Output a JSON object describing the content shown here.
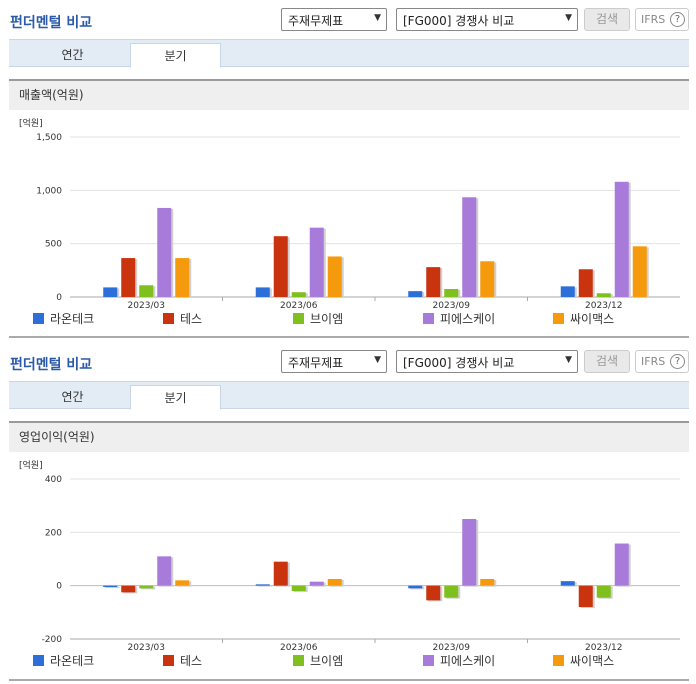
{
  "panels": [
    {
      "title": "펀더멘털 비교",
      "select1": "주재무제표",
      "select2": "[FG000] 경쟁사 비교",
      "search_label": "검색",
      "ifrs_label": "IFRS",
      "ifrs_help": "?",
      "tabs": [
        "연간",
        "분기"
      ],
      "active_tab": 1,
      "metric_label": "매출액(억원)"
    },
    {
      "title": "펀더멘털 비교",
      "select1": "주재무제표",
      "select2": "[FG000] 경쟁사 비교",
      "search_label": "검색",
      "ifrs_label": "IFRS",
      "ifrs_help": "?",
      "tabs": [
        "연간",
        "분기"
      ],
      "active_tab": 1,
      "metric_label": "영업이익(억원)"
    }
  ],
  "colors": [
    "#2d6fd8",
    "#c9330d",
    "#7fbf1e",
    "#a87bdb",
    "#f59a0c"
  ],
  "chart_data": [
    {
      "type": "bar",
      "unit": "[억원]",
      "categories": [
        "2023/03",
        "2023/06",
        "2023/09",
        "2023/12"
      ],
      "yticks": [
        0,
        500,
        1000,
        1500
      ],
      "ytick_labels": [
        "0",
        "500",
        "1,000",
        "1,500"
      ],
      "ylim": [
        0,
        1500
      ],
      "legend": "bottom",
      "series": [
        {
          "name": "라온테크",
          "values": [
            90,
            90,
            55,
            100
          ]
        },
        {
          "name": "테스",
          "values": [
            365,
            570,
            280,
            260
          ]
        },
        {
          "name": "브이엠",
          "values": [
            110,
            45,
            75,
            35
          ]
        },
        {
          "name": "피에스케이",
          "values": [
            835,
            650,
            935,
            1080
          ]
        },
        {
          "name": "싸이맥스",
          "values": [
            365,
            380,
            335,
            475
          ]
        }
      ]
    },
    {
      "type": "bar",
      "unit": "[억원]",
      "categories": [
        "2023/03",
        "2023/06",
        "2023/09",
        "2023/12"
      ],
      "yticks": [
        -200,
        0,
        200,
        400
      ],
      "ytick_labels": [
        "-200",
        "0",
        "200",
        "400"
      ],
      "ylim": [
        -200,
        400
      ],
      "legend": "bottom",
      "series": [
        {
          "name": "라온테크",
          "values": [
            -5,
            5,
            -10,
            17
          ]
        },
        {
          "name": "테스",
          "values": [
            -25,
            90,
            -55,
            -80
          ]
        },
        {
          "name": "브이엠",
          "values": [
            -10,
            -20,
            -45,
            -45
          ]
        },
        {
          "name": "피에스케이",
          "values": [
            110,
            15,
            250,
            158
          ]
        },
        {
          "name": "싸이맥스",
          "values": [
            20,
            25,
            25,
            0
          ]
        }
      ]
    }
  ]
}
